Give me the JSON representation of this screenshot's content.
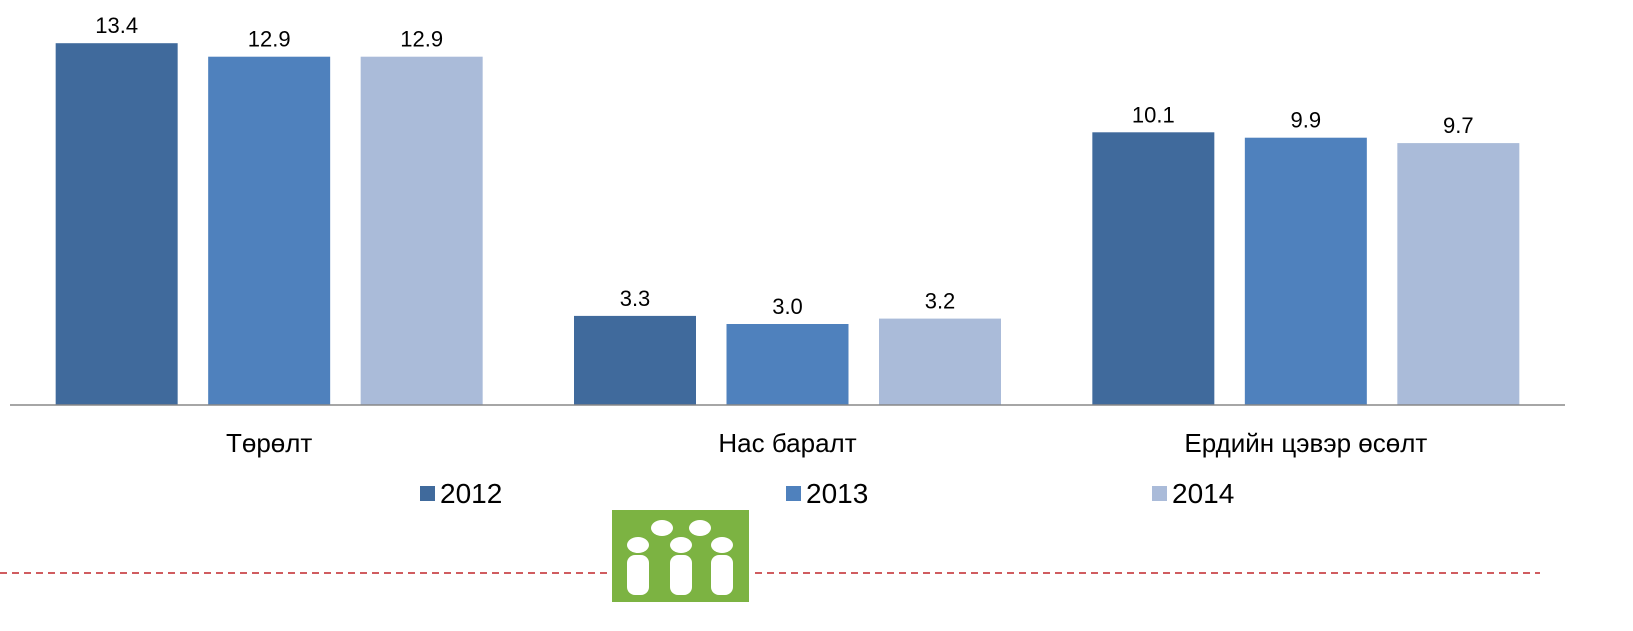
{
  "chart_data": {
    "type": "bar",
    "categories": [
      "Төрөлт",
      "Нас баралт",
      "Ердийн цэвэр өсөлт"
    ],
    "series": [
      {
        "name": "2012",
        "color": "#406a9c",
        "values": [
          13.4,
          3.3,
          10.1
        ],
        "value_labels": [
          "13.4",
          "3.3",
          "10.1"
        ]
      },
      {
        "name": "2013",
        "color": "#4f81bd",
        "values": [
          12.9,
          3.0,
          9.9
        ],
        "value_labels": [
          "12.9",
          "3.0",
          "9.9"
        ]
      },
      {
        "name": "2014",
        "color": "#aabbd9",
        "values": [
          12.9,
          3.2,
          9.7
        ],
        "value_labels": [
          "12.9",
          "3.2",
          "9.7"
        ]
      }
    ],
    "ylim": [
      0,
      15
    ],
    "legend": "bottom"
  }
}
